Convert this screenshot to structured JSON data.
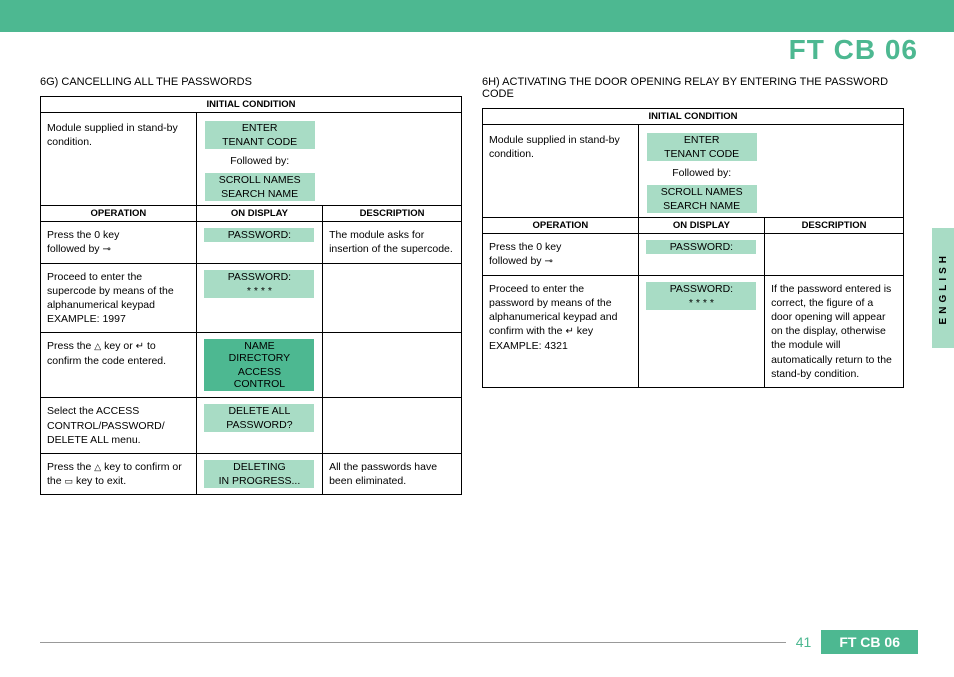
{
  "header": {
    "title": "FT CB 06"
  },
  "side_label": "ENGLISH",
  "footer": {
    "page": "41",
    "label": "FT CB 06"
  },
  "colors": {
    "accent": "#4db891",
    "light": "#a8dcc5",
    "text": "#000000"
  },
  "left": {
    "heading": "6G) CANCELLING ALL THE PASSWORDS",
    "initial_header": "INITIAL CONDITION",
    "initial_note": "Module supplied in stand-by condition.",
    "enter1": "ENTER",
    "enter2": "TENANT CODE",
    "followed": "Followed by:",
    "scroll1": "SCROLL NAMES",
    "scroll2": "SEARCH NAME",
    "hdr_op": "OPERATION",
    "hdr_disp": "ON DISPLAY",
    "hdr_desc": "DESCRIPTION",
    "rows": [
      {
        "op1": "Press the 0 key",
        "op2": "followed by ",
        "op_icon": "⊸",
        "d1": "PASSWORD:",
        "d2": "",
        "desc": "The module asks for insertion of the supercode."
      },
      {
        "op": "Proceed to enter the supercode by means of the alphanumerical keypad EXAMPLE: 1997",
        "d1": "PASSWORD:",
        "d2": "* * * *",
        "desc": ""
      },
      {
        "op_pre": "Press the ",
        "op_ic1": "△",
        "op_mid": " key or ",
        "op_ic2": "↵",
        "op_post": " to confirm the code entered.",
        "d1": "NAME DIRECTORY",
        "d2": "ACCESS CONTROL",
        "dark": true,
        "desc": ""
      },
      {
        "op": "Select the ACCESS CONTROL/PASSWORD/ DELETE ALL menu.",
        "d1": "DELETE ALL",
        "d2": "PASSWORD?",
        "desc": ""
      },
      {
        "op_pre": "Press the ",
        "op_ic1": "△",
        "op_mid": " key to confirm or the ",
        "op_ic2": "▭",
        "op_post": " key to exit.",
        "d1": "DELETING",
        "d2": "IN PROGRESS...",
        "desc": "All the passwords have been eliminated."
      }
    ]
  },
  "right": {
    "heading": "6H) ACTIVATING THE DOOR OPENING RELAY BY ENTERING THE PASSWORD CODE",
    "initial_header": "INITIAL CONDITION",
    "initial_note": "Module supplied in stand-by condition.",
    "enter1": "ENTER",
    "enter2": "TENANT CODE",
    "followed": "Followed by:",
    "scroll1": "SCROLL NAMES",
    "scroll2": "SEARCH NAME",
    "hdr_op": "OPERATION",
    "hdr_disp": "ON DISPLAY",
    "hdr_desc": "DESCRIPTION",
    "rows": [
      {
        "op1": "Press the 0 key",
        "op2": "followed by ",
        "op_icon": "⊸",
        "d1": "PASSWORD:",
        "d2": "",
        "desc": ""
      },
      {
        "op_pre": "Proceed to enter the password by means of the alphanumerical keypad and confirm with the ",
        "op_ic": "↵",
        "op_post": " key EXAMPLE: 4321",
        "d1": "PASSWORD:",
        "d2": "* * * *",
        "desc": "If the password entered is correct, the figure of a door opening will appear on the display, otherwise the module will automatically return to the stand-by condition."
      }
    ]
  }
}
